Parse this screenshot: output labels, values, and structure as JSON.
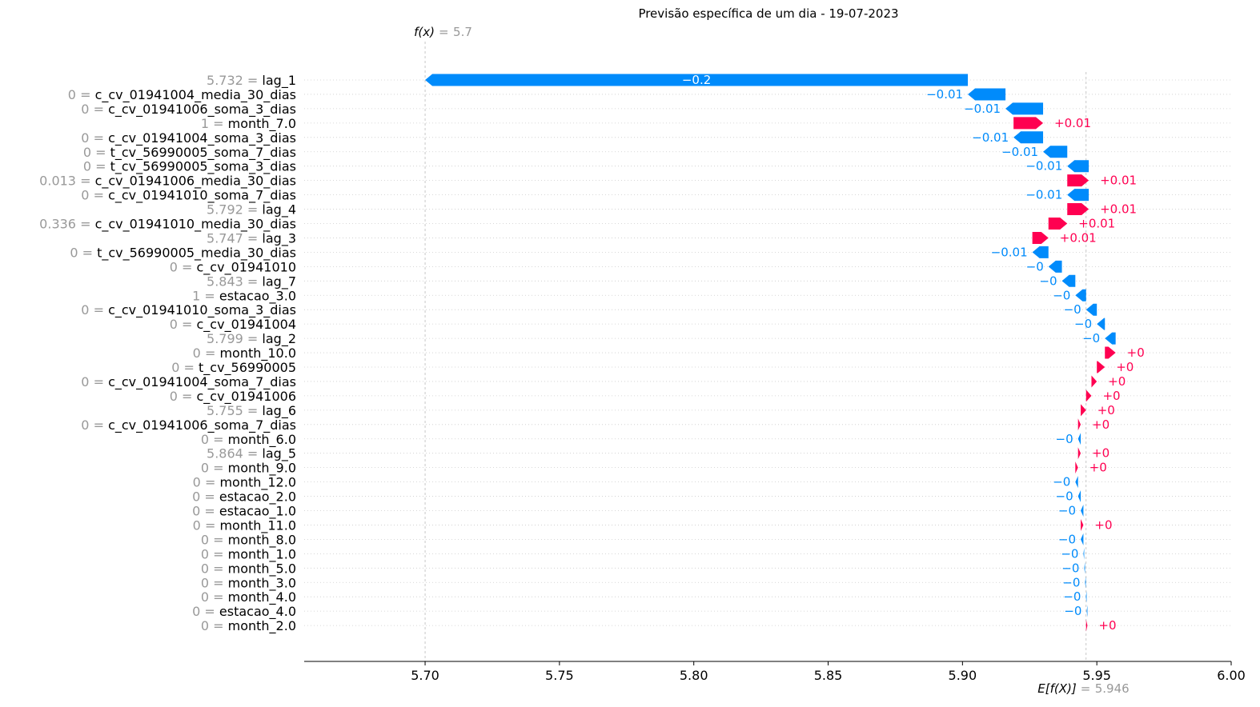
{
  "chart_data": {
    "type": "waterfall",
    "title": "Previsão específica de um dia - 19-07-2023",
    "fx": {
      "label": "f(x)",
      "value": "5.7"
    },
    "efx": {
      "label": "E[f(X)]",
      "value": "5.946"
    },
    "base_value": 5.946,
    "xlim": [
      5.655,
      6.0
    ],
    "x_ticks": [
      "5.70",
      "5.75",
      "5.80",
      "5.85",
      "5.90",
      "5.95",
      "6.00"
    ],
    "x_tick_values": [
      5.7,
      5.75,
      5.8,
      5.85,
      5.9,
      5.95,
      6.0
    ],
    "colors": {
      "negative": "#008bfb",
      "positive": "#ff0051"
    },
    "features": [
      {
        "value": "5.732",
        "name": "lag_1",
        "start": 5.902,
        "end": 5.7,
        "label": "−0.2"
      },
      {
        "value": "0",
        "name": "c_cv_01941004_media_30_dias",
        "start": 5.916,
        "end": 5.902,
        "label": "−0.01"
      },
      {
        "value": "0",
        "name": "c_cv_01941006_soma_3_dias",
        "start": 5.93,
        "end": 5.916,
        "label": "−0.01"
      },
      {
        "value": "1",
        "name": "month_7.0",
        "start": 5.919,
        "end": 5.93,
        "label": "+0.01"
      },
      {
        "value": "0",
        "name": "c_cv_01941004_soma_3_dias",
        "start": 5.93,
        "end": 5.919,
        "label": "−0.01"
      },
      {
        "value": "0",
        "name": "t_cv_56990005_soma_7_dias",
        "start": 5.939,
        "end": 5.93,
        "label": "−0.01"
      },
      {
        "value": "0",
        "name": "t_cv_56990005_soma_3_dias",
        "start": 5.947,
        "end": 5.939,
        "label": "−0.01"
      },
      {
        "value": "0.013",
        "name": "c_cv_01941006_media_30_dias",
        "start": 5.939,
        "end": 5.947,
        "label": "+0.01"
      },
      {
        "value": "0",
        "name": "c_cv_01941010_soma_7_dias",
        "start": 5.947,
        "end": 5.939,
        "label": "−0.01"
      },
      {
        "value": "5.792",
        "name": "lag_4",
        "start": 5.939,
        "end": 5.947,
        "label": "+0.01"
      },
      {
        "value": "0.336",
        "name": "c_cv_01941010_media_30_dias",
        "start": 5.932,
        "end": 5.939,
        "label": "+0.01"
      },
      {
        "value": "5.747",
        "name": "lag_3",
        "start": 5.926,
        "end": 5.932,
        "label": "+0.01"
      },
      {
        "value": "0",
        "name": "t_cv_56990005_media_30_dias",
        "start": 5.932,
        "end": 5.926,
        "label": "−0.01"
      },
      {
        "value": "0",
        "name": "c_cv_01941010",
        "start": 5.937,
        "end": 5.932,
        "label": "−0"
      },
      {
        "value": "5.843",
        "name": "lag_7",
        "start": 5.942,
        "end": 5.937,
        "label": "−0"
      },
      {
        "value": "1",
        "name": "estacao_3.0",
        "start": 5.946,
        "end": 5.942,
        "label": "−0"
      },
      {
        "value": "0",
        "name": "c_cv_01941010_soma_3_dias",
        "start": 5.95,
        "end": 5.946,
        "label": "−0"
      },
      {
        "value": "0",
        "name": "c_cv_01941004",
        "start": 5.953,
        "end": 5.95,
        "label": "−0"
      },
      {
        "value": "5.799",
        "name": "lag_2",
        "start": 5.957,
        "end": 5.953,
        "label": "−0"
      },
      {
        "value": "0",
        "name": "month_10.0",
        "start": 5.953,
        "end": 5.957,
        "label": "+0"
      },
      {
        "value": "0",
        "name": "t_cv_56990005",
        "start": 5.95,
        "end": 5.953,
        "label": "+0"
      },
      {
        "value": "0",
        "name": "c_cv_01941004_soma_7_dias",
        "start": 5.948,
        "end": 5.95,
        "label": "+0"
      },
      {
        "value": "0",
        "name": "c_cv_01941006",
        "start": 5.946,
        "end": 5.948,
        "label": "+0"
      },
      {
        "value": "5.755",
        "name": "lag_6",
        "start": 5.944,
        "end": 5.946,
        "label": "+0"
      },
      {
        "value": "0",
        "name": "c_cv_01941006_soma_7_dias",
        "start": 5.943,
        "end": 5.944,
        "label": "+0"
      },
      {
        "value": "0",
        "name": "month_6.0",
        "start": 5.944,
        "end": 5.943,
        "label": "−0"
      },
      {
        "value": "5.864",
        "name": "lag_5",
        "start": 5.943,
        "end": 5.944,
        "label": "+0"
      },
      {
        "value": "0",
        "name": "month_9.0",
        "start": 5.942,
        "end": 5.943,
        "label": "+0"
      },
      {
        "value": "0",
        "name": "month_12.0",
        "start": 5.943,
        "end": 5.942,
        "label": "−0"
      },
      {
        "value": "0",
        "name": "estacao_2.0",
        "start": 5.944,
        "end": 5.943,
        "label": "−0"
      },
      {
        "value": "0",
        "name": "estacao_1.0",
        "start": 5.945,
        "end": 5.944,
        "label": "−0"
      },
      {
        "value": "0",
        "name": "month_11.0",
        "start": 5.944,
        "end": 5.945,
        "label": "+0"
      },
      {
        "value": "0",
        "name": "month_8.0",
        "start": 5.945,
        "end": 5.944,
        "label": "−0"
      },
      {
        "value": "0",
        "name": "month_1.0",
        "start": 5.9453,
        "end": 5.945,
        "label": "−0"
      },
      {
        "value": "0",
        "name": "month_5.0",
        "start": 5.9456,
        "end": 5.9453,
        "label": "−0"
      },
      {
        "value": "0",
        "name": "month_3.0",
        "start": 5.9459,
        "end": 5.9456,
        "label": "−0"
      },
      {
        "value": "0",
        "name": "month_4.0",
        "start": 5.9462,
        "end": 5.9459,
        "label": "−0"
      },
      {
        "value": "0",
        "name": "estacao_4.0",
        "start": 5.9465,
        "end": 5.9462,
        "label": "−0"
      },
      {
        "value": "0",
        "name": "month_2.0",
        "start": 5.946,
        "end": 5.9465,
        "label": "+0"
      }
    ]
  }
}
